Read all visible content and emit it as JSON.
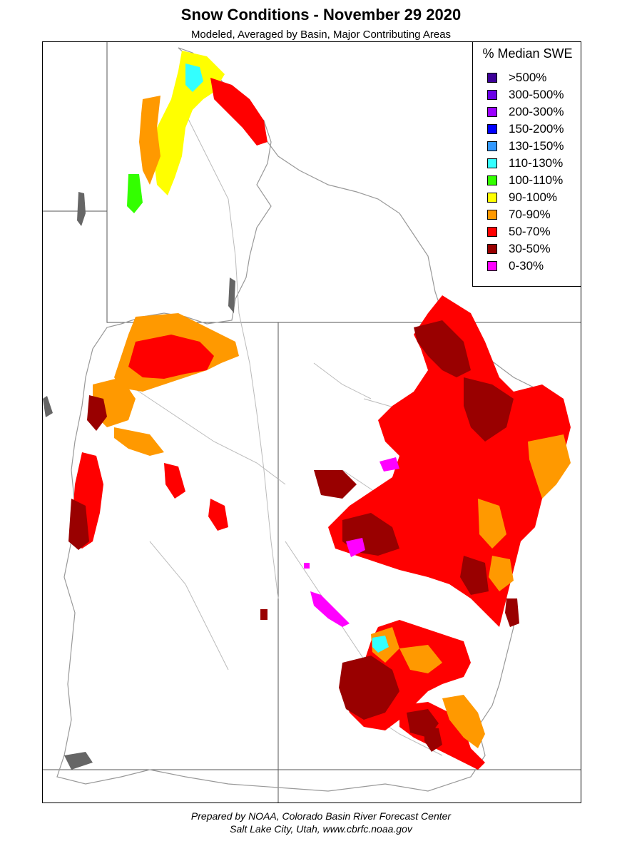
{
  "title": "Snow Conditions - November 29 2020",
  "subtitle": "Modeled, Averaged by Basin, Major Contributing Areas",
  "legend": {
    "title": "% Median SWE",
    "items": [
      {
        "label": ">500%",
        "color": "#3d0099"
      },
      {
        "label": "300-500%",
        "color": "#6a00e8"
      },
      {
        "label": "200-300%",
        "color": "#9a00ff"
      },
      {
        "label": "150-200%",
        "color": "#0000ff"
      },
      {
        "label": "130-150%",
        "color": "#3399ff"
      },
      {
        "label": "110-130%",
        "color": "#33ffff"
      },
      {
        "label": "100-110%",
        "color": "#33ff00"
      },
      {
        "label": "90-100%",
        "color": "#ffff00"
      },
      {
        "label": "70-90%",
        "color": "#ff9900"
      },
      {
        "label": "50-70%",
        "color": "#ff0000"
      },
      {
        "label": "30-50%",
        "color": "#990000"
      },
      {
        "label": "0-30%",
        "color": "#ff00ff"
      }
    ]
  },
  "footer": {
    "line1": "Prepared by NOAA, Colorado Basin River Forecast Center",
    "line2": "Salt Lake City, Utah, www.cbrfc.noaa.gov"
  }
}
